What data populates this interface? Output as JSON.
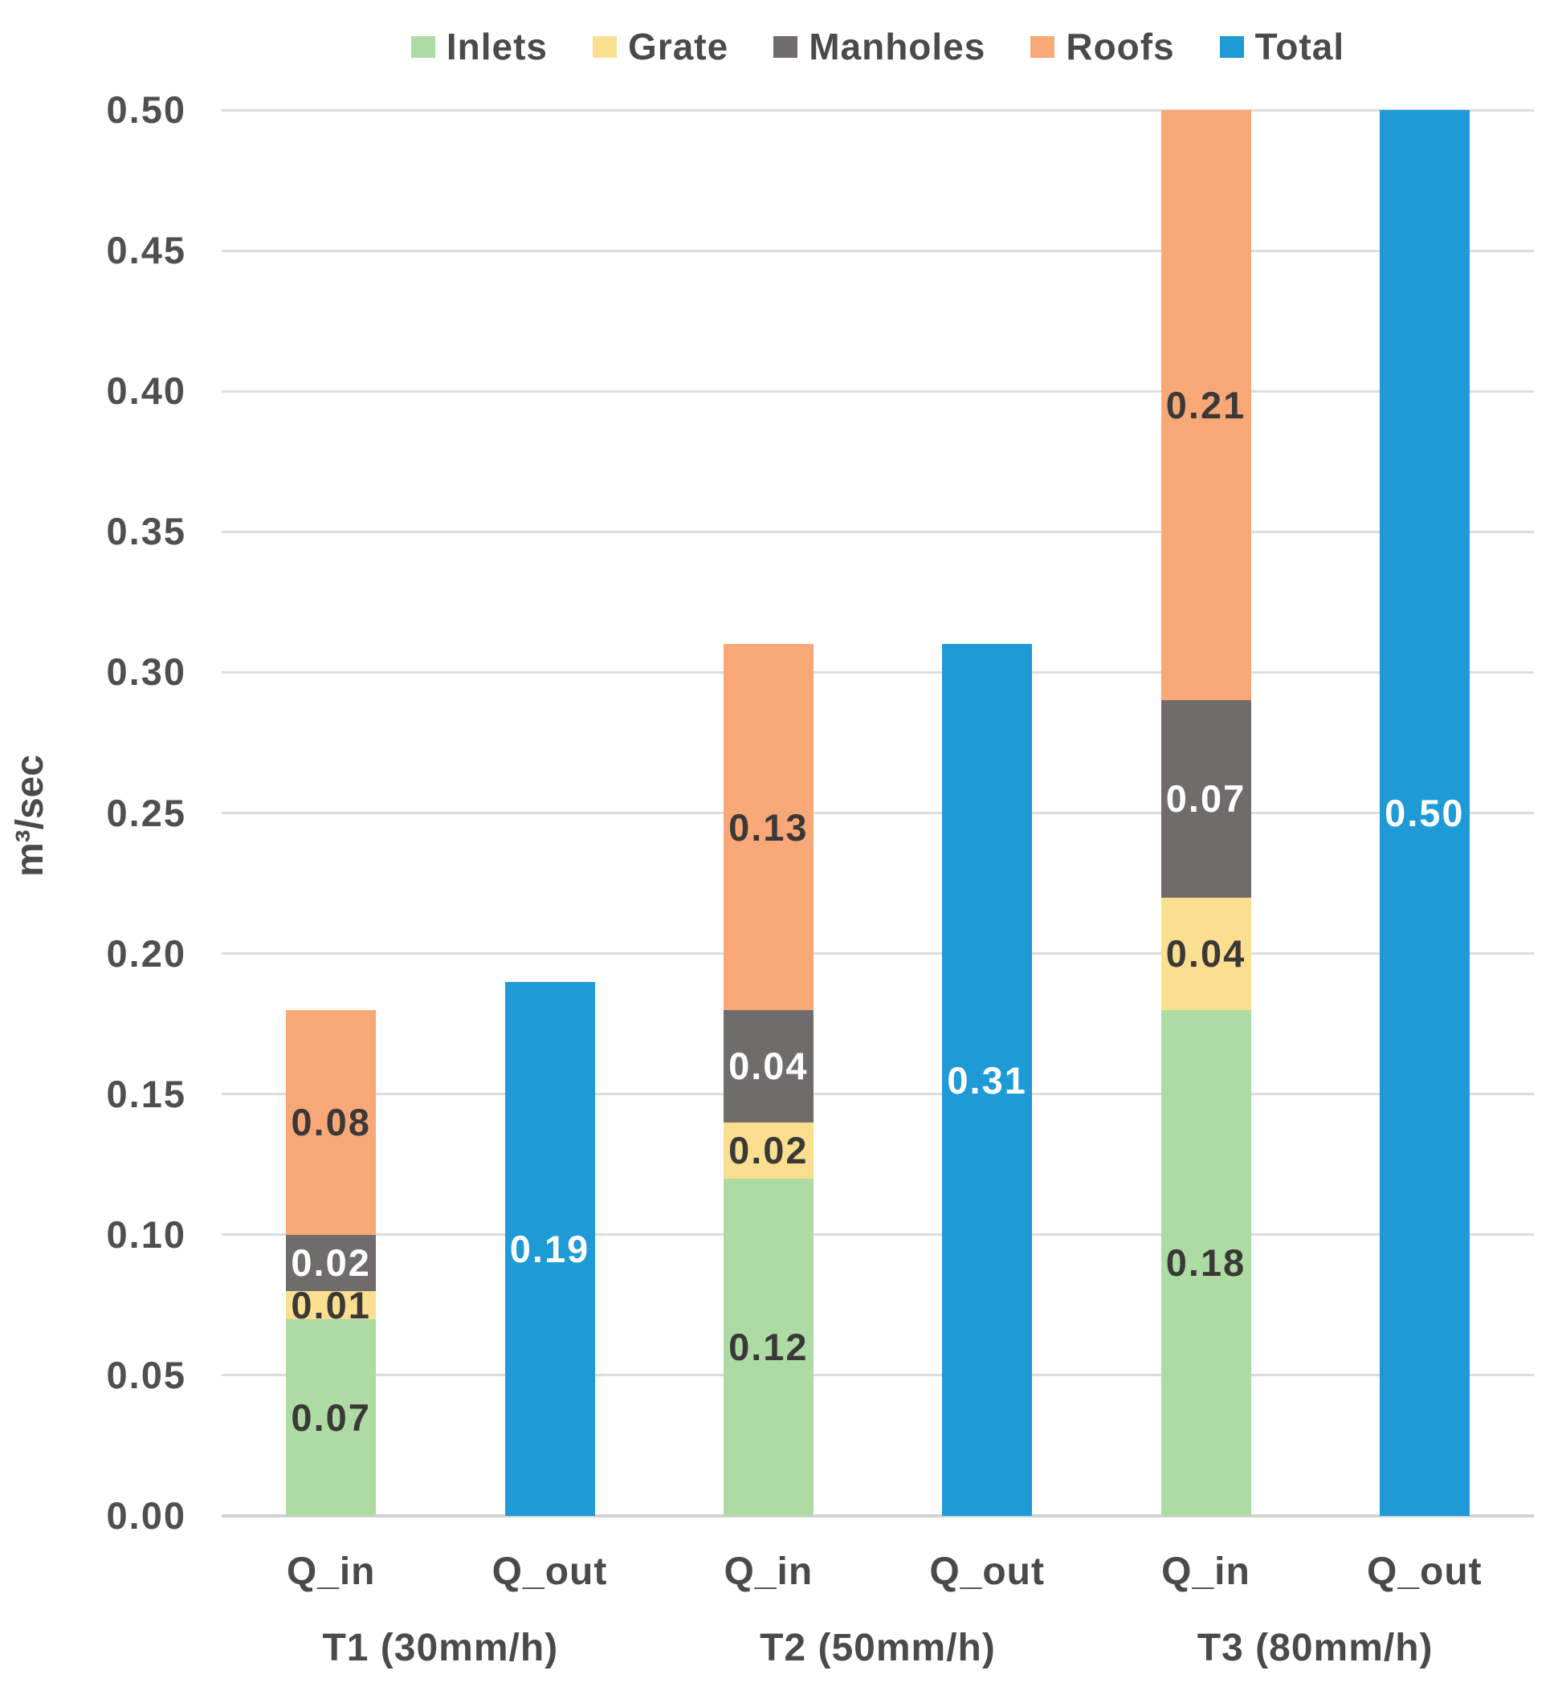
{
  "chart_data": {
    "type": "bar",
    "stacked": true,
    "title": "",
    "ylabel": "m³/sec",
    "ylim": [
      0,
      0.5
    ],
    "grid": true,
    "legend_position": "top",
    "yticks": [
      {
        "value": 0.0,
        "label": "0.00"
      },
      {
        "value": 0.05,
        "label": "0.05"
      },
      {
        "value": 0.1,
        "label": "0.10"
      },
      {
        "value": 0.15,
        "label": "0.15"
      },
      {
        "value": 0.2,
        "label": "0.20"
      },
      {
        "value": 0.25,
        "label": "0.25"
      },
      {
        "value": 0.3,
        "label": "0.30"
      },
      {
        "value": 0.35,
        "label": "0.35"
      },
      {
        "value": 0.4,
        "label": "0.40"
      },
      {
        "value": 0.45,
        "label": "0.45"
      },
      {
        "value": 0.5,
        "label": "0.50"
      }
    ],
    "legend": [
      {
        "name": "Inlets",
        "color": "#AEDAA4",
        "label_color": "#3B3838"
      },
      {
        "name": "Grate",
        "color": "#FBDF90",
        "label_color": "#3B3838"
      },
      {
        "name": "Manholes",
        "color": "#716C6C",
        "label_color": "#FFFFFF"
      },
      {
        "name": "Roofs",
        "color": "#F8A877",
        "label_color": "#3B3838"
      },
      {
        "name": "Total",
        "color": "#1E9AD6",
        "label_color": "#FFFFFF"
      }
    ],
    "groups": [
      {
        "label": "T1 (30mm/h)",
        "bars": [
          {
            "category": "Q_in",
            "segments": [
              {
                "series": "Inlets",
                "value": 0.07,
                "label": "0.07"
              },
              {
                "series": "Grate",
                "value": 0.01,
                "label": "0.01"
              },
              {
                "series": "Manholes",
                "value": 0.02,
                "label": "0.02"
              },
              {
                "series": "Roofs",
                "value": 0.08,
                "label": "0.08"
              }
            ]
          },
          {
            "category": "Q_out",
            "segments": [
              {
                "series": "Total",
                "value": 0.19,
                "label": "0.19"
              }
            ]
          }
        ]
      },
      {
        "label": "T2 (50mm/h)",
        "bars": [
          {
            "category": "Q_in",
            "segments": [
              {
                "series": "Inlets",
                "value": 0.12,
                "label": "0.12"
              },
              {
                "series": "Grate",
                "value": 0.02,
                "label": "0.02"
              },
              {
                "series": "Manholes",
                "value": 0.04,
                "label": "0.04"
              },
              {
                "series": "Roofs",
                "value": 0.13,
                "label": "0.13"
              }
            ]
          },
          {
            "category": "Q_out",
            "segments": [
              {
                "series": "Total",
                "value": 0.31,
                "label": "0.31"
              }
            ]
          }
        ]
      },
      {
        "label": "T3 (80mm/h)",
        "bars": [
          {
            "category": "Q_in",
            "segments": [
              {
                "series": "Inlets",
                "value": 0.18,
                "label": "0.18"
              },
              {
                "series": "Grate",
                "value": 0.04,
                "label": "0.04"
              },
              {
                "series": "Manholes",
                "value": 0.07,
                "label": "0.07"
              },
              {
                "series": "Roofs",
                "value": 0.21,
                "label": "0.21"
              }
            ]
          },
          {
            "category": "Q_out",
            "segments": [
              {
                "series": "Total",
                "value": 0.5,
                "label": "0.50"
              }
            ]
          }
        ]
      }
    ]
  }
}
